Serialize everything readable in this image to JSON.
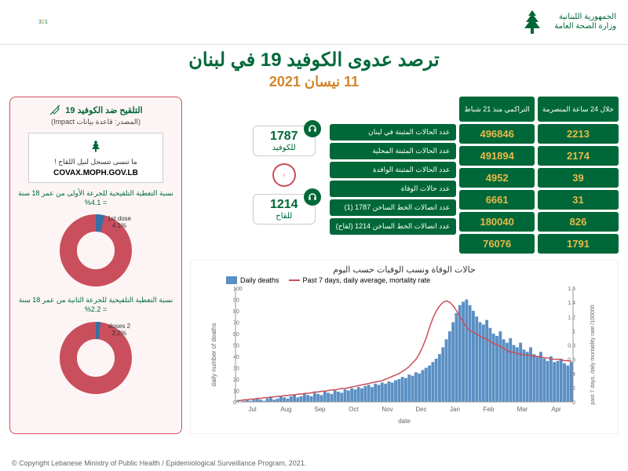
{
  "header": {
    "org_ar1": "الجمهورية اللبنانية",
    "org_ar2": "وزارة الصحة العامة",
    "campaign": "SMALL STEPS MAKE A BIG IMPACT"
  },
  "title": "ترصد عدوى الكوفيد 19 في لبنان",
  "date": "11 نيسان 2021",
  "vaccine_panel": {
    "header": "التلقيح ضد الكوفيد 19",
    "source": "(المصدر: قاعدة بيانات Impact)",
    "reminder": "ما تنسى تتسجل لنيل اللقاح !",
    "url": "COVAX.MOPH.GOV.LB",
    "dose1_label": "نسبة التغطية التلقيحية للجرعة الأولى من عمر 18 سنة = 4.1%",
    "dose1_pct": 4.1,
    "dose1_text": "1st dose 4.1%",
    "dose2_label": "نسبة التغطية التلقيحية للجرعة الثانية من عمر 18 سنة = 2.2%",
    "dose2_pct": 2.2,
    "dose2_text": "2 doses 2.2%",
    "donut_fill": "#c94f5c",
    "donut_slice": "#3a6ea5",
    "donut_inner": "#ffffff"
  },
  "stats": {
    "col24h_header": "خلال 24 ساعة المنصرمة",
    "colcum_header": "التراكمي منذ 21 شباط",
    "rows": [
      {
        "label": "عدد الحالات المثبتة في لبنان",
        "h24": "2213",
        "cum": "496846"
      },
      {
        "label": "عدد الحالات المثبتة المحلية",
        "h24": "2174",
        "cum": "491894"
      },
      {
        "label": "عدد الحالات المثبتة الوافدة",
        "h24": "39",
        "cum": "4952"
      },
      {
        "label": "عدد حالات الوفاة",
        "h24": "31",
        "cum": "6661"
      },
      {
        "label": "عدد اتصالات الخط الساخن 1787 (1)",
        "h24": "826",
        "cum": "180040"
      },
      {
        "label": "عدد اتصالات الخط الساخن 1214 (لقاح)",
        "h24": "1791",
        "cum": "76076"
      }
    ],
    "bg": "#006838",
    "num_color": "#e8b94a",
    "text_color": "#ffffff"
  },
  "hotlines": {
    "covid_num": "1787",
    "covid_label": "للكوفيد",
    "vacc_num": "1214",
    "vacc_label": "للقاح"
  },
  "chart": {
    "title": "حالات الوفاة ونسب الوفيات حسب اليوم",
    "legend_deaths": "Daily deaths",
    "legend_rate": "Past 7 days, daily average, mortality rate",
    "ylabel_left": "daily number of deaths",
    "ylabel_right": "past 7 days, daily mortatility rate /100000",
    "xlabel": "date",
    "bar_color": "#5a8fc4",
    "line_color": "#c94f5c",
    "y_left_max": 100,
    "y_left_ticks": [
      0,
      10,
      20,
      30,
      40,
      50,
      60,
      70,
      80,
      90,
      100
    ],
    "y_right_max": 1.6,
    "y_right_ticks": [
      0,
      0.2,
      0.4,
      0.6,
      0.8,
      1,
      1.2,
      1.4,
      1.6
    ],
    "x_months": [
      "Jul",
      "Aug",
      "Sep",
      "Oct",
      "Nov",
      "Dec",
      "Jan",
      "Feb",
      "Mar",
      "Apr"
    ],
    "deaths": [
      1,
      0,
      1,
      2,
      1,
      2,
      3,
      2,
      1,
      3,
      4,
      2,
      3,
      5,
      4,
      3,
      5,
      6,
      4,
      5,
      7,
      6,
      5,
      8,
      7,
      6,
      9,
      8,
      7,
      10,
      9,
      8,
      11,
      10,
      12,
      11,
      13,
      12,
      14,
      15,
      13,
      16,
      15,
      17,
      16,
      18,
      17,
      19,
      20,
      22,
      21,
      24,
      23,
      26,
      25,
      28,
      30,
      32,
      35,
      38,
      42,
      48,
      55,
      62,
      70,
      78,
      85,
      88,
      90,
      85,
      80,
      75,
      70,
      68,
      72,
      65,
      60,
      58,
      62,
      55,
      52,
      56,
      50,
      48,
      52,
      46,
      44,
      48,
      42,
      40,
      44,
      38,
      36,
      40,
      35,
      36,
      38,
      34,
      32,
      35
    ],
    "rate": [
      0.02,
      0.02,
      0.03,
      0.03,
      0.04,
      0.04,
      0.05,
      0.05,
      0.06,
      0.06,
      0.07,
      0.07,
      0.08,
      0.08,
      0.09,
      0.09,
      0.1,
      0.1,
      0.11,
      0.11,
      0.12,
      0.12,
      0.13,
      0.14,
      0.14,
      0.15,
      0.15,
      0.16,
      0.17,
      0.17,
      0.18,
      0.19,
      0.19,
      0.2,
      0.21,
      0.22,
      0.23,
      0.24,
      0.25,
      0.26,
      0.27,
      0.28,
      0.29,
      0.3,
      0.32,
      0.34,
      0.36,
      0.38,
      0.4,
      0.43,
      0.46,
      0.5,
      0.55,
      0.6,
      0.68,
      0.78,
      0.9,
      1.05,
      1.18,
      1.28,
      1.35,
      1.4,
      1.42,
      1.4,
      1.35,
      1.28,
      1.2,
      1.12,
      1.05,
      1.0,
      0.98,
      0.95,
      0.92,
      0.9,
      0.88,
      0.85,
      0.82,
      0.8,
      0.78,
      0.75,
      0.72,
      0.7,
      0.7,
      0.68,
      0.67,
      0.66,
      0.66,
      0.65,
      0.64,
      0.64,
      0.63,
      0.62,
      0.62,
      0.6,
      0.6,
      0.6,
      0.59,
      0.58,
      0.58,
      0.57
    ]
  },
  "footer": "© Copyright Lebanese Ministry of Public Health / Epidemiological Surveillance Program, 2021."
}
